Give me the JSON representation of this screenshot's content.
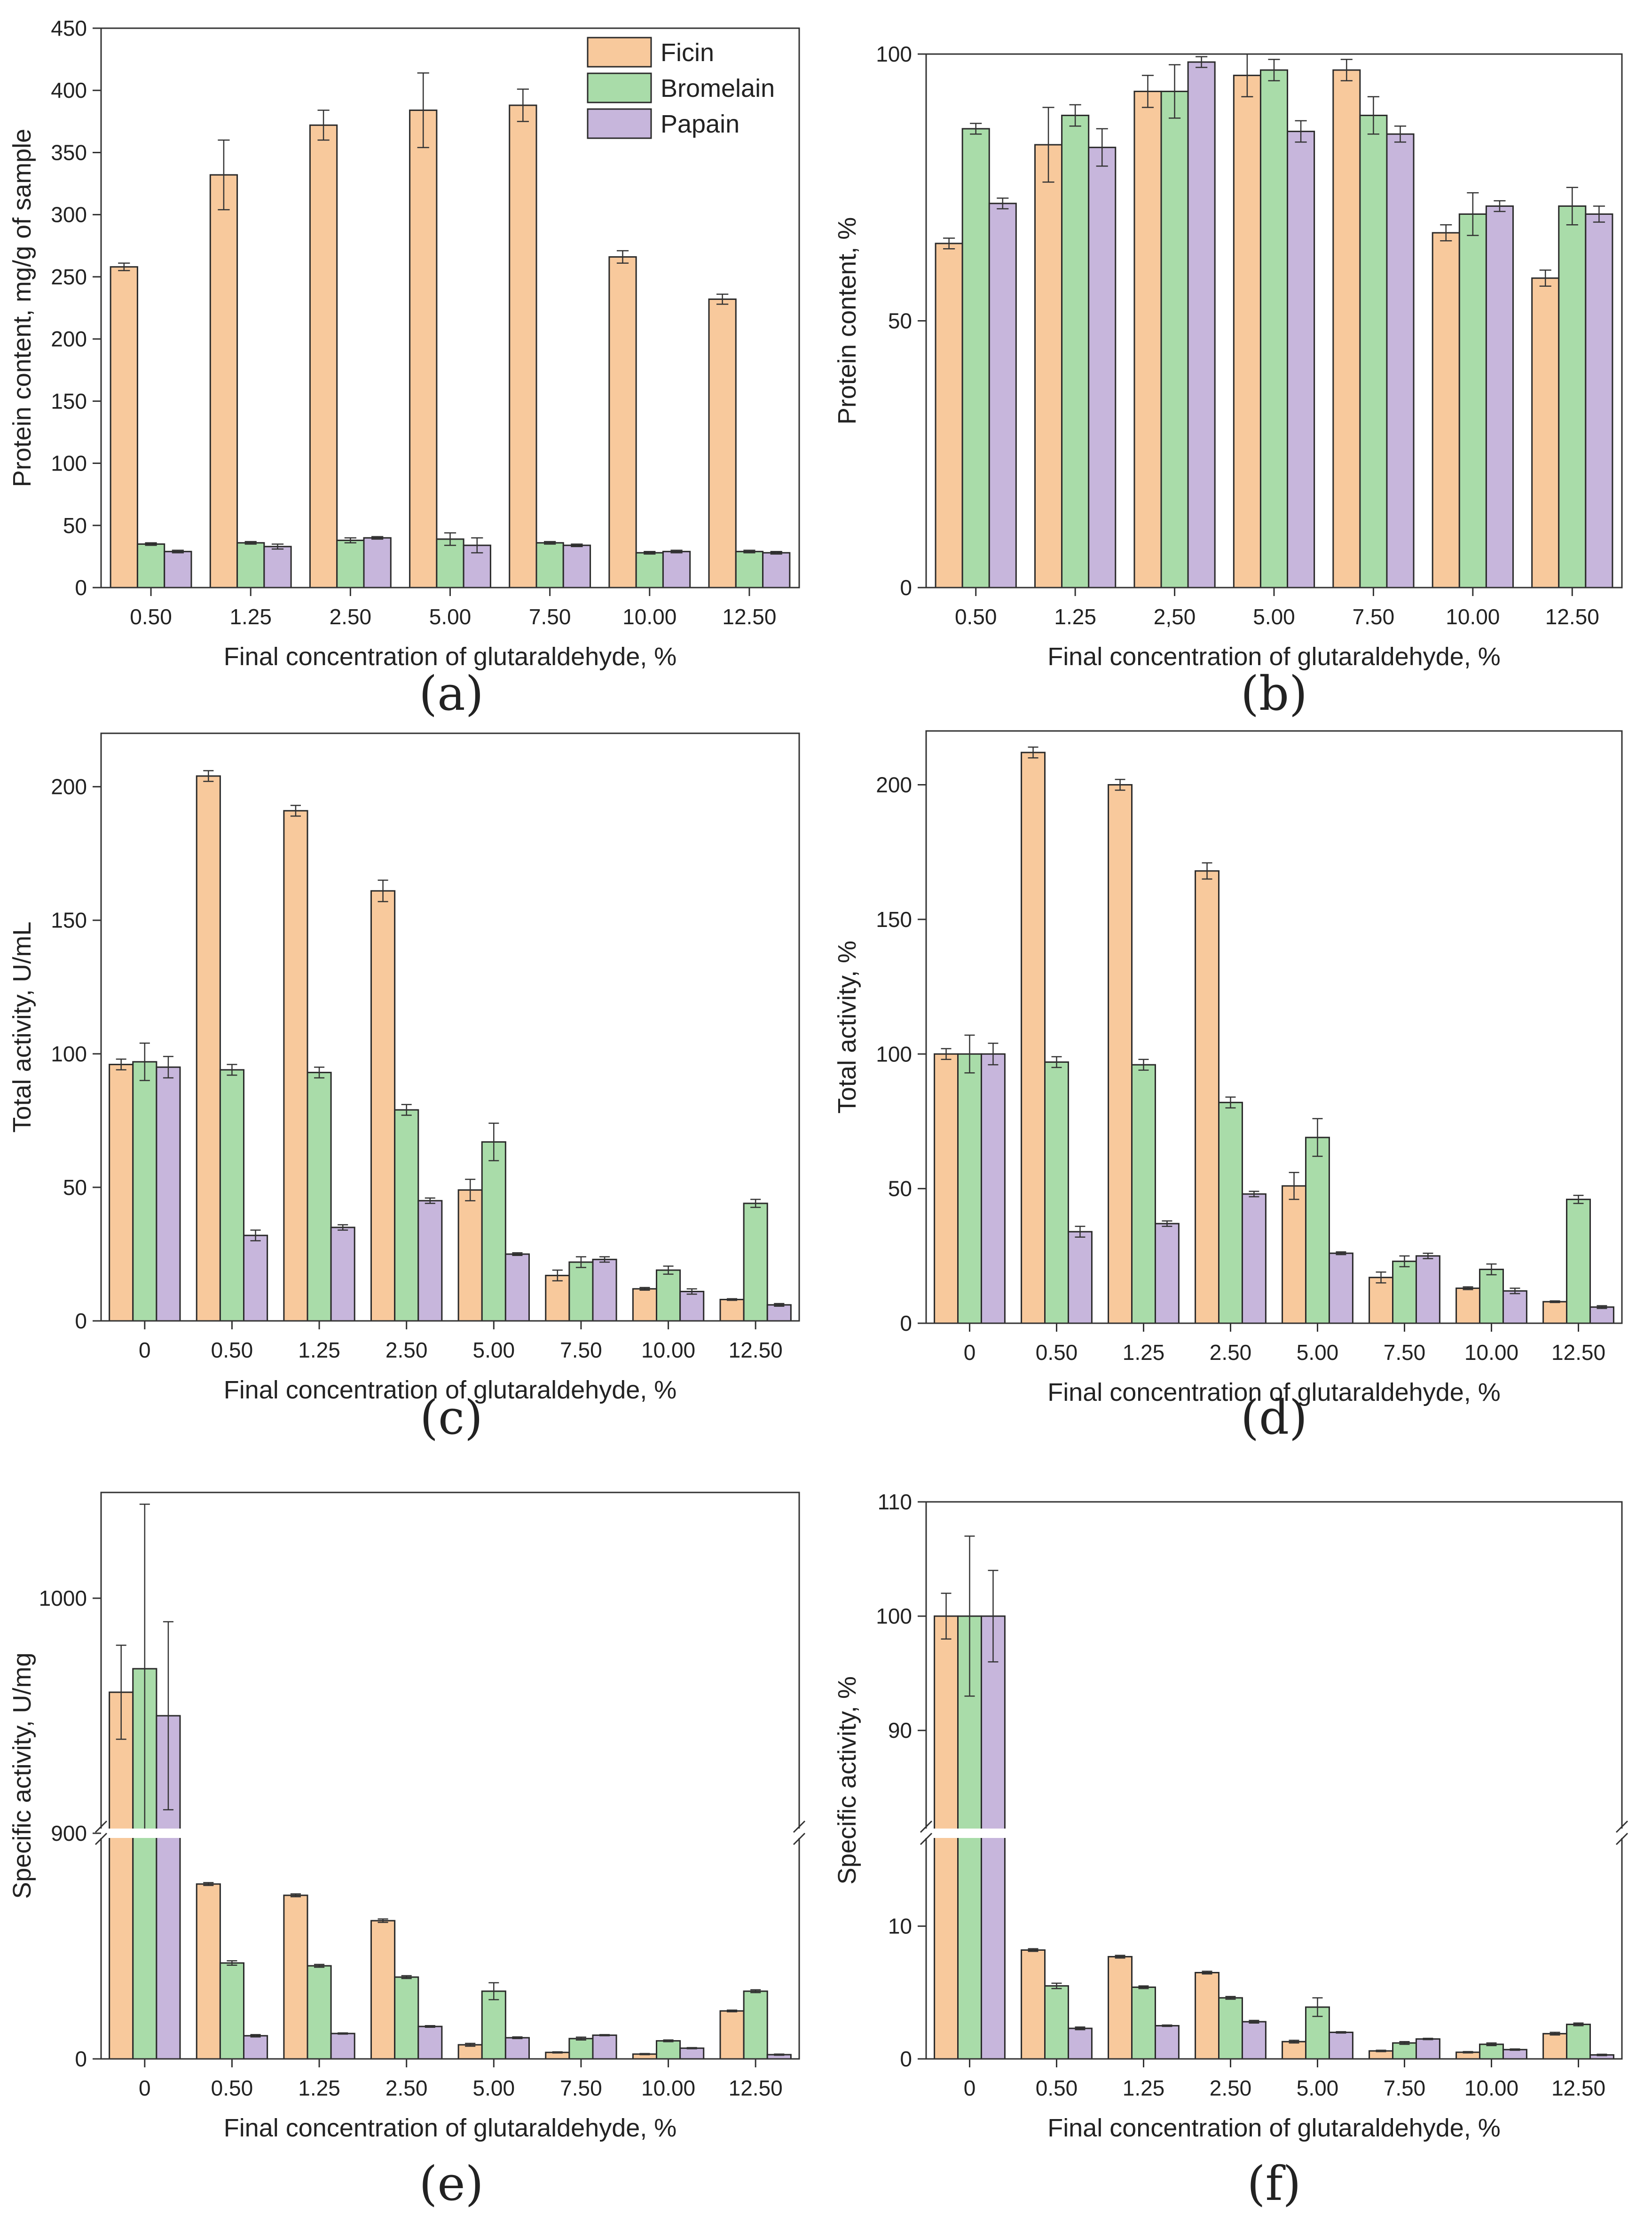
{
  "colors": {
    "Ficin": "#f8c99c",
    "Bromelain": "#a9dca9",
    "Papain": "#c7b6dc"
  },
  "legend": [
    "Ficin",
    "Bromelain",
    "Papain"
  ],
  "chart_data": [
    {
      "id": "a",
      "letter": "(a)",
      "type": "bar",
      "xlabel": "Final concentration of glutaraldehyde, %",
      "ylabel": "Protein content, mg/g of sample",
      "ylim": [
        0,
        450
      ],
      "yticks": [
        0,
        50,
        100,
        150,
        200,
        250,
        300,
        350,
        400,
        450
      ],
      "categories": [
        "0.50",
        "1.25",
        "2.50",
        "5.00",
        "7.50",
        "10.00",
        "12.50"
      ],
      "series": [
        {
          "name": "Ficin",
          "values": [
            258,
            332,
            372,
            384,
            388,
            266,
            232
          ],
          "errors": [
            3,
            28,
            12,
            30,
            13,
            5,
            4
          ]
        },
        {
          "name": "Bromelain",
          "values": [
            35,
            36,
            38,
            39,
            36,
            28,
            29
          ],
          "errors": [
            1,
            1,
            2,
            5,
            1,
            1,
            1
          ]
        },
        {
          "name": "Papain",
          "values": [
            29,
            33,
            40,
            34,
            34,
            29,
            28
          ],
          "errors": [
            1,
            2,
            1,
            6,
            1,
            1,
            1
          ]
        }
      ],
      "legend_position": "top-right"
    },
    {
      "id": "b",
      "letter": "(b)",
      "type": "bar",
      "xlabel": "Final concentration of glutaraldehyde, %",
      "ylabel": "Protein content, %",
      "ylim": [
        0,
        100
      ],
      "yticks": [
        0,
        50,
        100
      ],
      "categories": [
        "0.50",
        "1.25",
        "2,50",
        "5.00",
        "7.50",
        "10.00",
        "12.50"
      ],
      "series": [
        {
          "name": "Ficin",
          "values": [
            64.5,
            83,
            93,
            96,
            97,
            66.5,
            58
          ],
          "errors": [
            1,
            7,
            3,
            4,
            2,
            1.5,
            1.5
          ]
        },
        {
          "name": "Bromelain",
          "values": [
            86,
            88.5,
            93,
            97,
            88.5,
            70,
            71.5
          ],
          "errors": [
            1,
            2,
            5,
            2,
            3.5,
            4,
            3.5
          ]
        },
        {
          "name": "Papain",
          "values": [
            72,
            82.5,
            98.5,
            85.5,
            85,
            71.5,
            70
          ],
          "errors": [
            1,
            3.5,
            1,
            2,
            1.5,
            1,
            1.5
          ]
        }
      ]
    },
    {
      "id": "c",
      "letter": "(c)",
      "type": "bar",
      "xlabel": "Final concentration of glutaraldehyde, %",
      "ylabel": "Total activity, U/mL",
      "ylim": [
        0,
        220
      ],
      "yticks": [
        0,
        50,
        100,
        150,
        200
      ],
      "categories": [
        "0",
        "0.50",
        "1.25",
        "2.50",
        "5.00",
        "7.50",
        "10.00",
        "12.50"
      ],
      "series": [
        {
          "name": "Ficin",
          "values": [
            96,
            204,
            191,
            161,
            49,
            17,
            12,
            8
          ],
          "errors": [
            2,
            2,
            2,
            4,
            4,
            2,
            0.5,
            0.3
          ]
        },
        {
          "name": "Bromelain",
          "values": [
            97,
            94,
            93,
            79,
            67,
            22,
            19,
            44
          ],
          "errors": [
            7,
            2,
            2,
            2,
            7,
            2,
            1.5,
            1.5
          ]
        },
        {
          "name": "Papain",
          "values": [
            95,
            32,
            35,
            45,
            25,
            23,
            11,
            6
          ],
          "errors": [
            4,
            2,
            1,
            1,
            0.5,
            1,
            1,
            0.5
          ]
        }
      ]
    },
    {
      "id": "d",
      "letter": "(d)",
      "type": "bar",
      "xlabel": "Final concentration of glutaraldehyde, %",
      "ylabel": "Total activity, %",
      "ylim": [
        0,
        220
      ],
      "yticks": [
        0,
        50,
        100,
        150,
        200
      ],
      "categories": [
        "0",
        "0.50",
        "1.25",
        "2.50",
        "5.00",
        "7.50",
        "10.00",
        "12.50"
      ],
      "series": [
        {
          "name": "Ficin",
          "values": [
            100,
            212,
            200,
            168,
            51,
            17,
            13,
            8
          ],
          "errors": [
            2,
            2,
            2,
            3,
            5,
            2,
            0.5,
            0.3
          ]
        },
        {
          "name": "Bromelain",
          "values": [
            100,
            97,
            96,
            82,
            69,
            23,
            20,
            46
          ],
          "errors": [
            7,
            2,
            2,
            2,
            7,
            2,
            2,
            1.5
          ]
        },
        {
          "name": "Papain",
          "values": [
            100,
            34,
            37,
            48,
            26,
            25,
            12,
            6
          ],
          "errors": [
            4,
            2,
            1,
            1,
            0.5,
            1,
            1,
            0.5
          ]
        }
      ]
    },
    {
      "id": "e",
      "letter": "(e)",
      "type": "bar",
      "xlabel": "Final concentration of glutaraldehyde, %",
      "ylabel": "Specific activity, U/mg",
      "broken_axis": true,
      "ylim_lower": [
        0,
        8
      ],
      "ylim_upper": [
        900,
        1045
      ],
      "yticks": [
        0,
        900,
        1000
      ],
      "categories": [
        "0",
        "0.50",
        "1.25",
        "2.50",
        "5.00",
        "7.50",
        "10.00",
        "12.50"
      ],
      "series": [
        {
          "name": "Ficin",
          "values": [
            960,
            6.2,
            5.8,
            4.9,
            0.5,
            0.23,
            0.17,
            1.7
          ],
          "errors": [
            20,
            0.05,
            0.05,
            0.06,
            0.05,
            0.02,
            0.02,
            0.03
          ]
        },
        {
          "name": "Bromelain",
          "values": [
            970,
            3.4,
            3.3,
            2.9,
            2.4,
            0.72,
            0.64,
            2.4
          ],
          "errors": [
            70,
            0.08,
            0.05,
            0.05,
            0.3,
            0.05,
            0.03,
            0.05
          ]
        },
        {
          "name": "Papain",
          "values": [
            950,
            0.82,
            0.9,
            1.15,
            0.75,
            0.84,
            0.38,
            0.15
          ],
          "errors": [
            40,
            0.04,
            0.02,
            0.03,
            0.03,
            0.02,
            0.02,
            0.02
          ]
        }
      ]
    },
    {
      "id": "f",
      "letter": "(f)",
      "type": "bar",
      "xlabel": "Final concentration of glutaraldehyde, %",
      "ylabel": "Specific activity, %",
      "broken_axis": true,
      "ylim_lower": [
        0,
        17
      ],
      "ylim_upper": [
        81,
        110
      ],
      "yticks": [
        0,
        10,
        90,
        100,
        110
      ],
      "categories": [
        "0",
        "0.50",
        "1.25",
        "2.50",
        "5.00",
        "7.50",
        "10.00",
        "12.50"
      ],
      "series": [
        {
          "name": "Ficin",
          "values": [
            100,
            8.2,
            7.7,
            6.5,
            1.3,
            0.6,
            0.5,
            1.9
          ],
          "errors": [
            2,
            0.1,
            0.1,
            0.1,
            0.1,
            0.05,
            0.05,
            0.1
          ]
        },
        {
          "name": "Bromelain",
          "values": [
            100,
            5.5,
            5.4,
            4.6,
            3.9,
            1.2,
            1.1,
            2.6
          ],
          "errors": [
            7,
            0.2,
            0.1,
            0.1,
            0.7,
            0.1,
            0.1,
            0.1
          ]
        },
        {
          "name": "Papain",
          "values": [
            100,
            2.3,
            2.5,
            2.8,
            2.0,
            1.5,
            0.7,
            0.3
          ],
          "errors": [
            4,
            0.1,
            0.05,
            0.1,
            0.05,
            0.05,
            0.05,
            0.05
          ]
        }
      ]
    }
  ]
}
